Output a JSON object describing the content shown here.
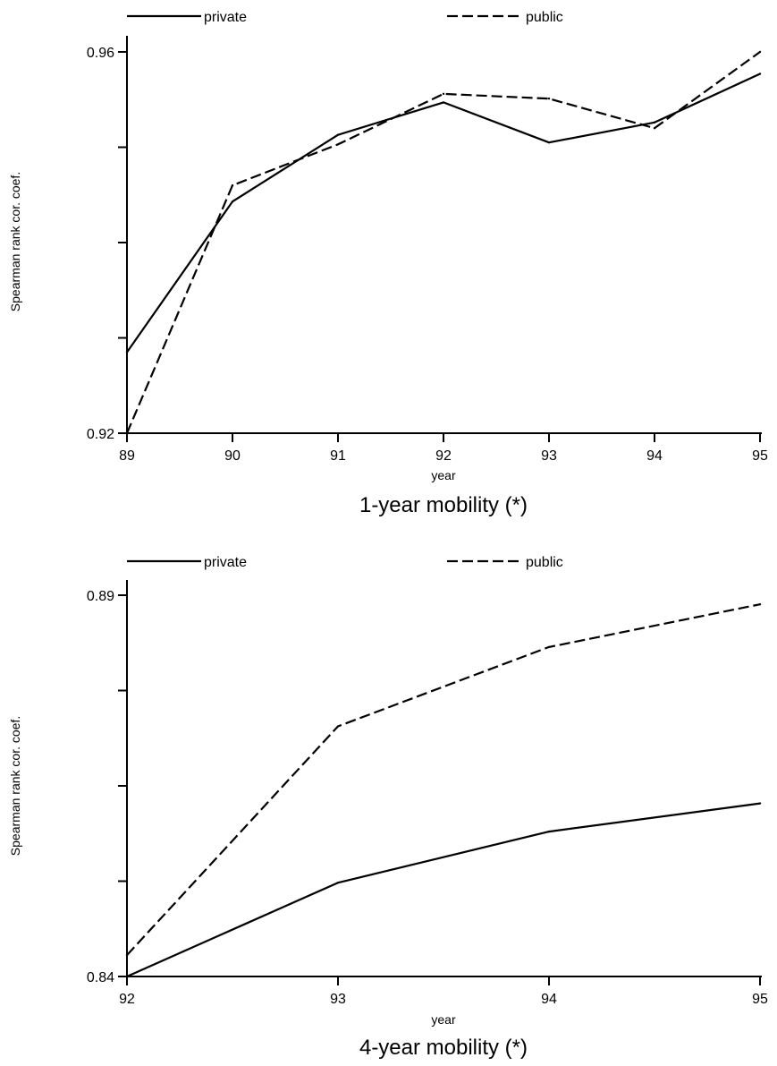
{
  "chart_data": [
    {
      "type": "line",
      "caption": "1-year mobility (*)",
      "xlabel": "year",
      "ylabel": "Spearman rank cor. coef.",
      "x": [
        89,
        90,
        91,
        92,
        93,
        94,
        95
      ],
      "x_tick_labels": [
        "89",
        "90",
        "91",
        "92",
        "93",
        "94",
        "95"
      ],
      "ylim": [
        0.92,
        0.96
      ],
      "y_tick_values": [
        0.92,
        0.93,
        0.94,
        0.95,
        0.96
      ],
      "y_tick_labels": [
        "0.92",
        "",
        "",
        "",
        "0.96"
      ],
      "legend_position": "top",
      "grid": false,
      "series": [
        {
          "name": "private",
          "style": "solid",
          "values": [
            0.9285,
            0.9443,
            0.9513,
            0.9547,
            0.9505,
            0.9526,
            0.9577
          ]
        },
        {
          "name": "public",
          "style": "dashed",
          "values": [
            0.92,
            0.946,
            0.9503,
            0.9556,
            0.9551,
            0.952,
            0.96
          ]
        }
      ]
    },
    {
      "type": "line",
      "caption": "4-year mobility (*)",
      "xlabel": "year",
      "ylabel": "Spearman rank cor. coef.",
      "x": [
        92,
        93,
        94,
        95
      ],
      "x_tick_labels": [
        "92",
        "93",
        "94",
        "95"
      ],
      "ylim": [
        0.84,
        0.89
      ],
      "y_tick_values": [
        0.84,
        0.8525,
        0.865,
        0.8775,
        0.89
      ],
      "y_tick_labels": [
        "0.84",
        "",
        "",
        "",
        "0.89"
      ],
      "legend_position": "top",
      "grid": false,
      "series": [
        {
          "name": "private",
          "style": "solid",
          "values": [
            0.84,
            0.8523,
            0.859,
            0.8627
          ]
        },
        {
          "name": "public",
          "style": "dashed",
          "values": [
            0.8428,
            0.8728,
            0.8832,
            0.8888
          ]
        }
      ]
    }
  ]
}
